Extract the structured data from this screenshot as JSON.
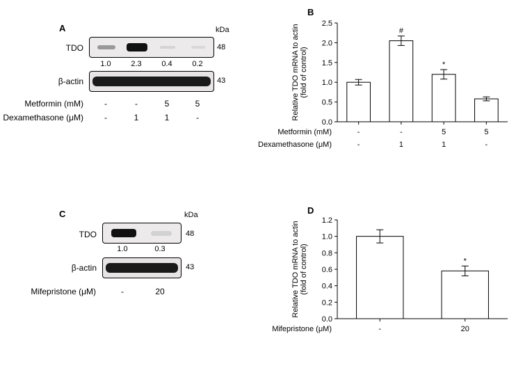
{
  "panels": {
    "A": "A",
    "B": "B",
    "C": "C",
    "D": "D"
  },
  "labels": {
    "TDO": "TDO",
    "bactin": "β-actin",
    "kDa": "kDa",
    "mw48": "48",
    "mw43": "43",
    "metformin": "Metformin (mM)",
    "dex": "Dexamethasone (μM)",
    "mife": "Mifepristone (μM)"
  },
  "panelA": {
    "blot_bg": "#eceaea",
    "tdo_quant": [
      "1.0",
      "2.3",
      "0.4",
      "0.2"
    ],
    "tdo_intensity": [
      0.35,
      1.0,
      0.12,
      0.08
    ],
    "actin_intensity": [
      0.95,
      0.95,
      0.95,
      0.95
    ],
    "band_color_strong": "#111111",
    "band_color_faint": "#c0c0c0",
    "metformin_row": [
      "-",
      "-",
      "5",
      "5"
    ],
    "dex_row": [
      "-",
      "1",
      "1",
      "-"
    ]
  },
  "panelC": {
    "tdo_quant": [
      "1.0",
      "0.3"
    ],
    "tdo_intensity": [
      1.0,
      0.25
    ],
    "actin_intensity": [
      0.95,
      0.95
    ],
    "mife_row": [
      "-",
      "20"
    ]
  },
  "panelB": {
    "y_title": "Relative TDO mRNA to actin\n(fold of control)",
    "ylim": [
      0,
      2.5
    ],
    "ytick_step": 0.5,
    "yticks": [
      "0.0",
      "0.5",
      "1.0",
      "1.5",
      "2.0",
      "2.5"
    ],
    "bars": [
      {
        "value": 1.0,
        "err": 0.07,
        "sig": ""
      },
      {
        "value": 2.05,
        "err": 0.12,
        "sig": "#"
      },
      {
        "value": 1.2,
        "err": 0.12,
        "sig": "*"
      },
      {
        "value": 0.58,
        "err": 0.05,
        "sig": ""
      }
    ],
    "metformin_row": [
      "-",
      "-",
      "5",
      "5"
    ],
    "dex_row": [
      "-",
      "1",
      "1",
      "-"
    ],
    "bar_fill": "#ffffff",
    "bar_stroke": "#000000",
    "axis_color": "#000000"
  },
  "panelD": {
    "y_title": "Relative TDO mRNA to actin\n(fold of control)",
    "ylim": [
      0,
      1.2
    ],
    "ytick_step": 0.2,
    "yticks": [
      "0.0",
      "0.2",
      "0.4",
      "0.6",
      "0.8",
      "1.0",
      "1.2"
    ],
    "bars": [
      {
        "value": 1.0,
        "err": 0.08,
        "sig": ""
      },
      {
        "value": 0.58,
        "err": 0.06,
        "sig": "*"
      }
    ],
    "mife_row": [
      "-",
      "20"
    ],
    "bar_fill": "#ffffff",
    "bar_stroke": "#000000",
    "axis_color": "#000000"
  },
  "style": {
    "font_family": "Arial",
    "text_color": "#000000",
    "background": "#ffffff",
    "label_fontsize_pt": 12,
    "axis_fontsize_pt": 11,
    "panel_label_fontsize_pt": 13
  }
}
